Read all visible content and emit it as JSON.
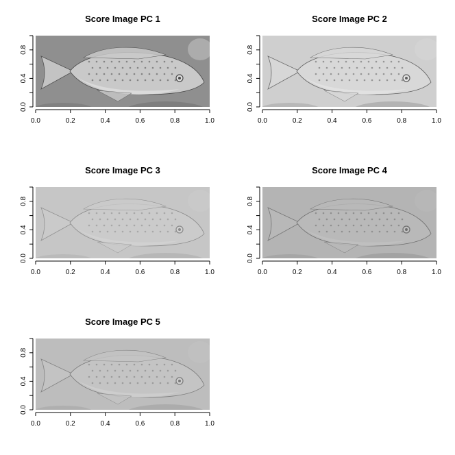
{
  "chart_data": [
    {
      "type": "heatmap",
      "title": "Score Image PC 1",
      "xlabel": "",
      "ylabel": "",
      "xlim": [
        0,
        1
      ],
      "ylim": [
        0,
        1
      ],
      "x_ticks": [
        "0.0",
        "0.2",
        "0.4",
        "0.6",
        "0.8",
        "1.0"
      ],
      "y_ticks": [
        "0.0",
        "0.4",
        "0.8"
      ],
      "image_content": "grayscale principal component score image of a cichlid fish",
      "palette": {
        "bg": "#8f8f8f",
        "body": "#c9c9c9",
        "detail": "#4a4a4a",
        "belly": "#dedede"
      }
    },
    {
      "type": "heatmap",
      "title": "Score Image PC 2",
      "xlabel": "",
      "ylabel": "",
      "xlim": [
        0,
        1
      ],
      "ylim": [
        0,
        1
      ],
      "x_ticks": [
        "0.0",
        "0.2",
        "0.4",
        "0.6",
        "0.8",
        "1.0"
      ],
      "y_ticks": [
        "0.0",
        "0.4",
        "0.8"
      ],
      "image_content": "grayscale principal component score image of a cichlid fish",
      "palette": {
        "bg": "#cfcfcf",
        "body": "#d8d8d8",
        "detail": "#5e5e5e",
        "belly": "#e4e4e4"
      }
    },
    {
      "type": "heatmap",
      "title": "Score Image PC 3",
      "xlabel": "",
      "ylabel": "",
      "xlim": [
        0,
        1
      ],
      "ylim": [
        0,
        1
      ],
      "x_ticks": [
        "0.0",
        "0.2",
        "0.4",
        "0.6",
        "0.8",
        "1.0"
      ],
      "y_ticks": [
        "0.0",
        "0.4",
        "0.8"
      ],
      "image_content": "grayscale principal component score image of a cichlid fish",
      "palette": {
        "bg": "#c6c6c6",
        "body": "#cbcbcb",
        "detail": "#8a8a8a",
        "belly": "#d2d2d2"
      }
    },
    {
      "type": "heatmap",
      "title": "Score Image PC 4",
      "xlabel": "",
      "ylabel": "",
      "xlim": [
        0,
        1
      ],
      "ylim": [
        0,
        1
      ],
      "x_ticks": [
        "0.0",
        "0.2",
        "0.4",
        "0.6",
        "0.8",
        "1.0"
      ],
      "y_ticks": [
        "0.0",
        "0.4",
        "0.8"
      ],
      "image_content": "grayscale principal component score image of a cichlid fish",
      "palette": {
        "bg": "#b4b4b4",
        "body": "#b9b9b9",
        "detail": "#6e6e6e",
        "belly": "#c0c0c0"
      }
    },
    {
      "type": "heatmap",
      "title": "Score Image PC 5",
      "xlabel": "",
      "ylabel": "",
      "xlim": [
        0,
        1
      ],
      "ylim": [
        0,
        1
      ],
      "x_ticks": [
        "0.0",
        "0.2",
        "0.4",
        "0.6",
        "0.8",
        "1.0"
      ],
      "y_ticks": [
        "0.0",
        "0.4",
        "0.8"
      ],
      "image_content": "grayscale principal component score image of a cichlid fish",
      "palette": {
        "bg": "#bdbdbd",
        "body": "#c4c4c4",
        "detail": "#7a7a7a",
        "belly": "#d0d0d0"
      }
    }
  ]
}
